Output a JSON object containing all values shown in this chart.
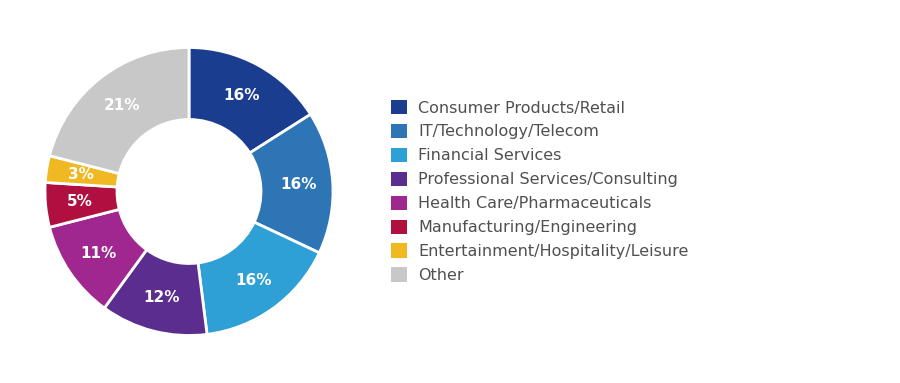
{
  "labels": [
    "Consumer Products/Retail",
    "IT/Technology/Telecom",
    "Financial Services",
    "Professional Services/Consulting",
    "Health Care/Pharmaceuticals",
    "Manufacturing/Engineering",
    "Entertainment/Hospitality/Leisure",
    "Other"
  ],
  "values": [
    16,
    16,
    16,
    12,
    11,
    5,
    3,
    21
  ],
  "colors": [
    "#1a3d8f",
    "#2e75b6",
    "#2ea0d5",
    "#5b2d8e",
    "#a0278f",
    "#b01040",
    "#f0b822",
    "#c8c8c8"
  ],
  "pct_labels": [
    "16%",
    "16%",
    "16%",
    "12%",
    "11%",
    "5%",
    "3%",
    "21%"
  ],
  "text_color": "#ffffff",
  "legend_text_color": "#505050",
  "label_fontsize": 11,
  "legend_fontsize": 11.5
}
